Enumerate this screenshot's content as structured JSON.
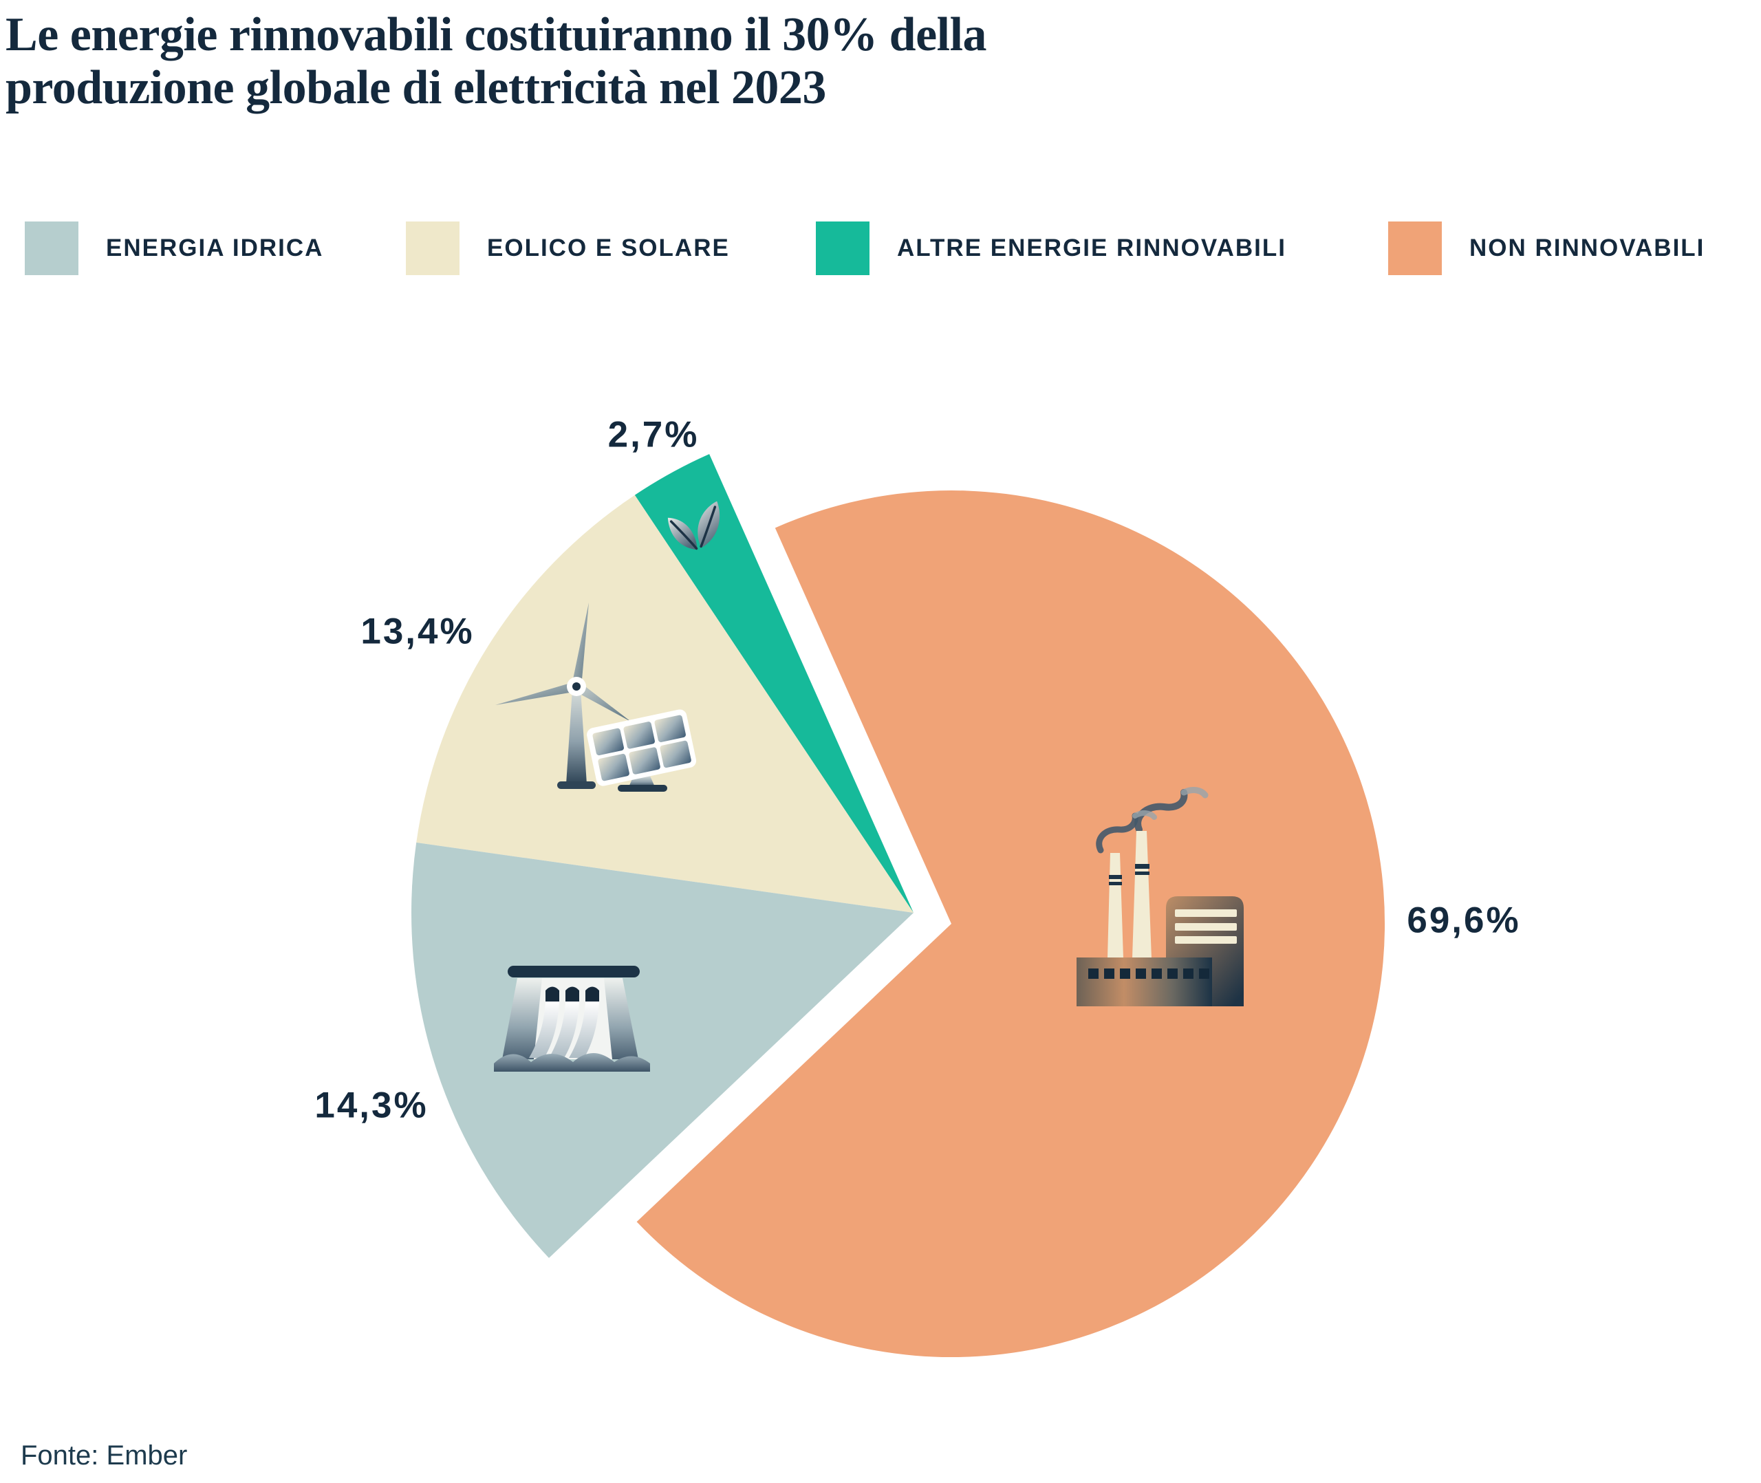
{
  "header": {
    "title_line1": "Le energie rinnovabili costituiranno il 30% della",
    "title_line2": "produzione globale di elettricità nel 2023"
  },
  "legend": {
    "items": [
      {
        "label": "ENERGIA IDRICA",
        "color": "#B6CECE"
      },
      {
        "label": "EOLICO E SOLARE",
        "color": "#EFE8CA"
      },
      {
        "label": "ALTRE ENERGIE RINNOVABILI",
        "color": "#16BA9A"
      },
      {
        "label": "NON RINNOVABILI",
        "color": "#F0A377"
      }
    ]
  },
  "chart_data": {
    "type": "pie",
    "title": "Le energie rinnovabili costituiranno il 30% della produzione globale di elettricità nel 2023",
    "unit": "%",
    "decimal_separator": ",",
    "total": 100,
    "legend_position": "top",
    "labels_outside": true,
    "slices": [
      {
        "id": "energia-idrica",
        "label": "Energia idrica",
        "value": 14.3,
        "display": "14,3%",
        "color": "#B6CECE",
        "icon": "hydro-dam-icon",
        "exploded": false
      },
      {
        "id": "eolico-e-solare",
        "label": "Eolico e solare",
        "value": 13.4,
        "display": "13,4%",
        "color": "#EFE8CA",
        "icon": "wind-turbine-solar-panel-icon",
        "exploded": false
      },
      {
        "id": "altre-rinnovabili",
        "label": "Altre energie rinnovabili",
        "value": 2.7,
        "display": "2,7%",
        "color": "#16BA9A",
        "icon": "leaf-icon",
        "exploded": false
      },
      {
        "id": "non-rinnovabili",
        "label": "Non rinnovabili",
        "value": 69.6,
        "display": "69,6%",
        "color": "#F0A377",
        "icon": "factory-icon",
        "exploded": true
      }
    ]
  },
  "source": {
    "text": "Fonte: Ember"
  },
  "colors": {
    "text": "#14293D",
    "background": "#FFFFFF"
  }
}
